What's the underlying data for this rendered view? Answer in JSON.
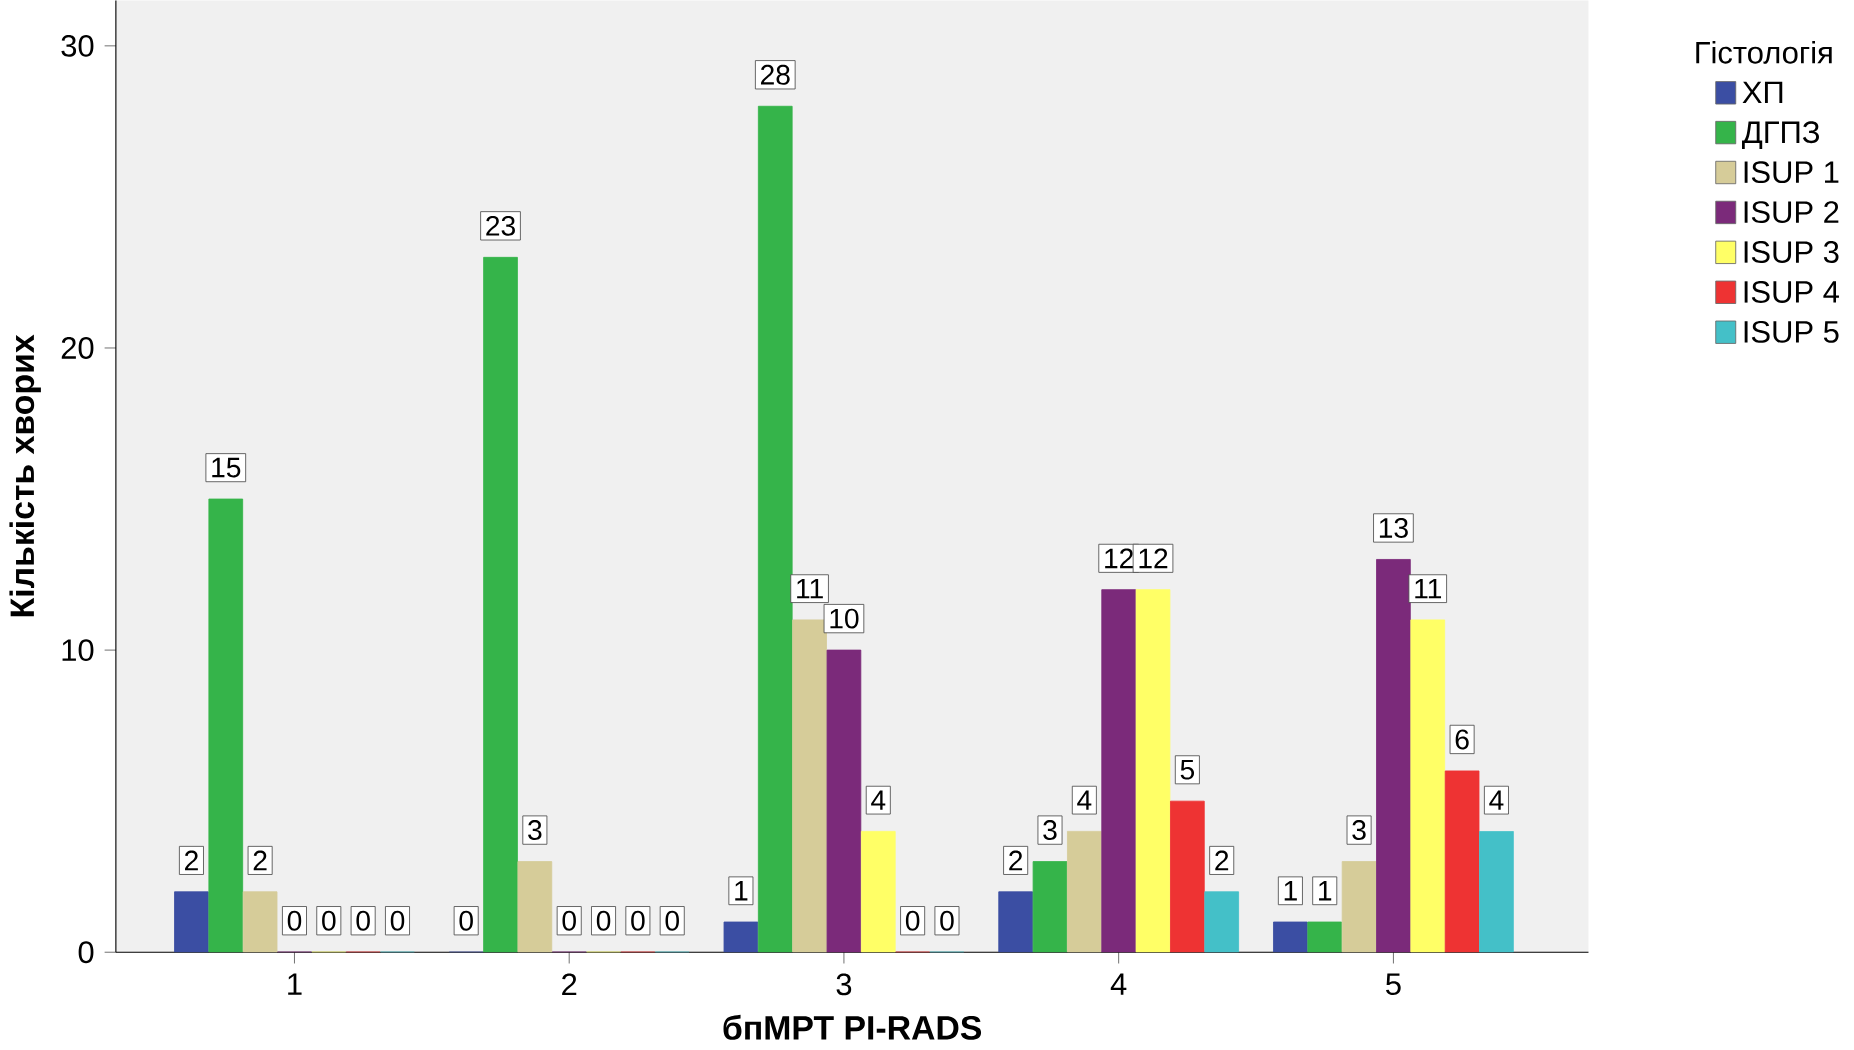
{
  "chart_data": {
    "type": "bar",
    "xlabel": "бпМРТ PI-RADS",
    "ylabel": "Кількість хворих",
    "legend_title": "Гістологія",
    "categories": [
      "1",
      "2",
      "3",
      "4",
      "5"
    ],
    "series": [
      {
        "name": "ХП",
        "color": "#3b4ea3",
        "values": [
          2,
          0,
          1,
          2,
          1
        ]
      },
      {
        "name": "ДГПЗ",
        "color": "#35b44a",
        "values": [
          15,
          23,
          28,
          3,
          1
        ]
      },
      {
        "name": "ISUP 1",
        "color": "#d6cc99",
        "values": [
          2,
          3,
          11,
          4,
          3
        ]
      },
      {
        "name": "ISUP 2",
        "color": "#7b2a7a",
        "values": [
          0,
          0,
          10,
          12,
          13
        ]
      },
      {
        "name": "ISUP 3",
        "color": "#ffff66",
        "values": [
          0,
          0,
          4,
          12,
          11
        ]
      },
      {
        "name": "ISUP 4",
        "color": "#ee3333",
        "values": [
          0,
          0,
          0,
          5,
          6
        ]
      },
      {
        "name": "ISUP 5",
        "color": "#44c0c8",
        "values": [
          0,
          0,
          0,
          2,
          4
        ]
      }
    ],
    "ylim": [
      0,
      31.5
    ],
    "yticks": [
      0,
      10,
      20,
      30
    ],
    "data_labels": true,
    "legend": "right",
    "grid": false
  }
}
